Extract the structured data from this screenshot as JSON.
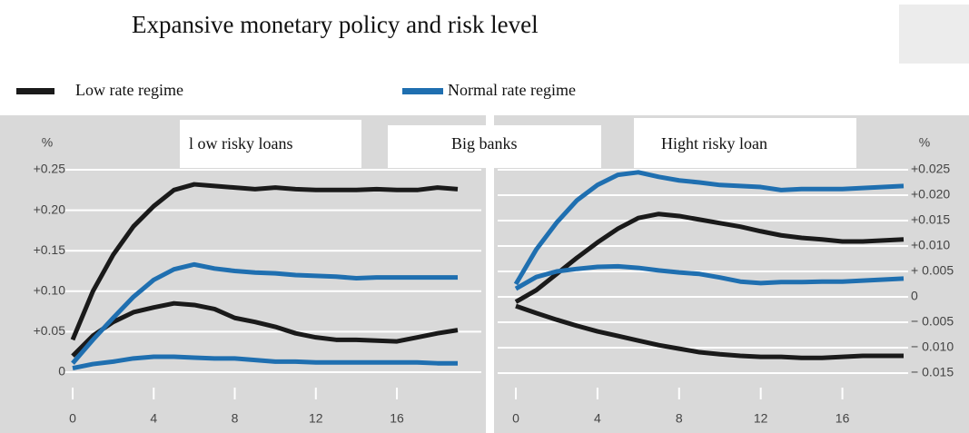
{
  "title": "Expansive monetary policy and risk level",
  "legend": [
    {
      "name": "Low rate regime",
      "color": "#1a1a1a"
    },
    {
      "name": "Normal rate regime",
      "color": "#1f6fb0"
    }
  ],
  "labels": [
    "l ow risky loans",
    "Big banks",
    "Hight risky loan"
  ],
  "chart_data": [
    {
      "type": "line",
      "y_label": "%",
      "x": [
        0,
        1,
        2,
        3,
        4,
        5,
        6,
        7,
        8,
        9,
        10,
        11,
        12,
        13,
        14,
        15,
        16,
        17,
        18,
        19
      ],
      "xlim": [
        0,
        19
      ],
      "xticks": [
        0,
        4,
        8,
        12,
        16
      ],
      "ylim": [
        -0.02,
        0.27
      ],
      "yticks": [
        0,
        {
          "value": 0.05,
          "label": "+0.05"
        },
        {
          "value": 0.1,
          "label": "+0.10"
        },
        {
          "value": 0.15,
          "label": "+0.15"
        },
        {
          "value": 0.2,
          "label": "+0.20"
        },
        {
          "value": 0.25,
          "label": "+0.25"
        }
      ],
      "grid": true,
      "series": [
        {
          "color": "#1a1a1a",
          "values": [
            0.04,
            0.1,
            0.145,
            0.18,
            0.205,
            0.225,
            0.232,
            0.23,
            0.228,
            0.226,
            0.228,
            0.226,
            0.225,
            0.225,
            0.225,
            0.226,
            0.225,
            0.225,
            0.228,
            0.226
          ]
        },
        {
          "color": "#1a1a1a",
          "values": [
            0.02,
            0.045,
            0.062,
            0.074,
            0.08,
            0.085,
            0.083,
            0.078,
            0.067,
            0.062,
            0.056,
            0.048,
            0.043,
            0.04,
            0.04,
            0.039,
            0.038,
            0.043,
            0.048,
            0.052
          ]
        },
        {
          "color": "#1f6fb0",
          "values": [
            0.011,
            0.04,
            0.067,
            0.093,
            0.114,
            0.127,
            0.133,
            0.128,
            0.125,
            0.123,
            0.122,
            0.12,
            0.119,
            0.118,
            0.116,
            0.117,
            0.117,
            0.117,
            0.117,
            0.117
          ]
        },
        {
          "color": "#1f6fb0",
          "values": [
            0.005,
            0.01,
            0.013,
            0.017,
            0.019,
            0.019,
            0.018,
            0.017,
            0.017,
            0.015,
            0.013,
            0.013,
            0.012,
            0.012,
            0.012,
            0.012,
            0.012,
            0.012,
            0.011,
            0.011
          ]
        }
      ]
    },
    {
      "type": "line",
      "y_label": "%",
      "x": [
        0,
        1,
        2,
        3,
        4,
        5,
        6,
        7,
        8,
        9,
        10,
        11,
        12,
        13,
        14,
        15,
        16,
        17,
        18,
        19
      ],
      "xlim": [
        0,
        19
      ],
      "xticks": [
        0,
        4,
        8,
        12,
        16
      ],
      "ylim": [
        -0.018,
        0.028
      ],
      "yticks": [
        {
          "value": -0.015,
          "label": "− 0.015"
        },
        {
          "value": -0.01,
          "label": "− 0.010"
        },
        {
          "value": -0.005,
          "label": "− 0.005"
        },
        0,
        {
          "value": 0.005,
          "label": "+ 0.005"
        },
        {
          "value": 0.01,
          "label": "+0.010"
        },
        {
          "value": 0.015,
          "label": "+0.015"
        },
        {
          "value": 0.02,
          "label": "+0.020"
        },
        {
          "value": 0.025,
          "label": "+0.025"
        }
      ],
      "grid": true,
      "series": [
        {
          "color": "#1f6fb0",
          "values": [
            0.0025,
            0.0093,
            0.0146,
            0.019,
            0.022,
            0.024,
            0.0245,
            0.0236,
            0.0229,
            0.0225,
            0.022,
            0.0218,
            0.0216,
            0.021,
            0.0212,
            0.0212,
            0.0212,
            0.0214,
            0.0216,
            0.0218
          ]
        },
        {
          "color": "#1a1a1a",
          "values": [
            -0.001,
            0.0013,
            0.0045,
            0.0077,
            0.0107,
            0.0134,
            0.0155,
            0.0163,
            0.0159,
            0.0152,
            0.0145,
            0.0138,
            0.0129,
            0.0121,
            0.0116,
            0.0113,
            0.0109,
            0.0109,
            0.0111,
            0.0113
          ]
        },
        {
          "color": "#1f6fb0",
          "values": [
            0.0016,
            0.0039,
            0.005,
            0.0055,
            0.0059,
            0.006,
            0.0057,
            0.0052,
            0.0048,
            0.0045,
            0.0038,
            0.003,
            0.0027,
            0.0029,
            0.0029,
            0.003,
            0.003,
            0.0032,
            0.0034,
            0.0036
          ]
        },
        {
          "color": "#1a1a1a",
          "values": [
            -0.0018,
            -0.0032,
            -0.0045,
            -0.0057,
            -0.0068,
            -0.0077,
            -0.0086,
            -0.0095,
            -0.0102,
            -0.0109,
            -0.0113,
            -0.0116,
            -0.0118,
            -0.0118,
            -0.012,
            -0.012,
            -0.0118,
            -0.0116,
            -0.0116,
            -0.0116
          ]
        }
      ]
    }
  ]
}
